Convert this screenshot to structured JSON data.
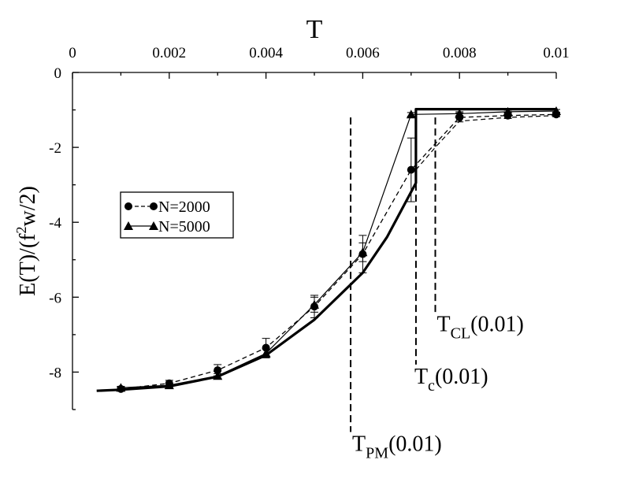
{
  "chart_data": {
    "type": "line",
    "xlabel": "T",
    "ylabel": "E(T)/(f",
    "ylabel_sup": "2",
    "ylabel_tail": "w/2)",
    "xlim": [
      0,
      0.01
    ],
    "ylim": [
      -9,
      0
    ],
    "x_ticks": [
      0,
      0.002,
      0.004,
      0.006,
      0.008,
      0.01
    ],
    "x_tick_labels": [
      "0",
      "0.002",
      "0.004",
      "0.006",
      "0.008",
      "0.01"
    ],
    "y_ticks": [
      0,
      -2,
      -4,
      -6,
      -8
    ],
    "y_tick_labels": [
      "0",
      "-2",
      "-4",
      "-6",
      "-8"
    ],
    "x_axis_position": "top",
    "legend_position": "center-left",
    "series": [
      {
        "name": "N=2000",
        "marker": "circle",
        "line_style": "dashed",
        "x": [
          0.001,
          0.002,
          0.003,
          0.004,
          0.005,
          0.006,
          0.007,
          0.008,
          0.009,
          0.01
        ],
        "y": [
          -8.45,
          -8.3,
          -7.95,
          -7.35,
          -6.25,
          -4.85,
          -2.6,
          -1.2,
          -1.15,
          -1.12
        ],
        "error": [
          0.05,
          0.08,
          0.15,
          0.25,
          0.3,
          0.5,
          0.85,
          0.12,
          0.08,
          0.06
        ]
      },
      {
        "name": "N=5000",
        "marker": "triangle",
        "line_style": "thin-solid",
        "x": [
          0.001,
          0.002,
          0.003,
          0.004,
          0.005,
          0.006,
          0.007,
          0.008,
          0.009,
          0.01
        ],
        "y": [
          -8.42,
          -8.35,
          -8.1,
          -7.5,
          -6.2,
          -4.8,
          -1.12,
          -1.1,
          -1.05,
          -1.03
        ],
        "error": [
          0.04,
          0.05,
          0.06,
          0.12,
          0.2,
          0.25,
          0.05,
          0.05,
          0.04,
          0.04
        ]
      },
      {
        "marker": "none",
        "line_style": "thick-solid",
        "x": [
          0.0005,
          0.001,
          0.002,
          0.003,
          0.004,
          0.005,
          0.006,
          0.0065,
          0.0071,
          0.0071,
          0.01
        ],
        "y": [
          -8.5,
          -8.47,
          -8.38,
          -8.12,
          -7.55,
          -6.6,
          -5.35,
          -4.4,
          -2.95,
          -0.98,
          -0.98
        ]
      },
      {
        "marker": "none",
        "line_style": "thin-dashed",
        "x": [
          0.0071,
          0.0075,
          0.008,
          0.009,
          0.01
        ],
        "y": [
          -2.6,
          -2.0,
          -1.3,
          -1.2,
          -1.15
        ]
      }
    ],
    "vlines": [
      {
        "x": 0.00575,
        "y_top": -1.2,
        "y_bottom": -9.6,
        "label_main": "T",
        "label_sub": "PM",
        "label_tail": "(0.01)"
      },
      {
        "x": 0.0071,
        "y_top": -1.2,
        "y_bottom": -7.8,
        "label_main": "T",
        "label_sub": "c",
        "label_tail": "(0.01)"
      },
      {
        "x": 0.0075,
        "y_top": -1.2,
        "y_bottom": -6.4,
        "label_main": "T",
        "label_sub": "CL",
        "label_tail": "(0.01)"
      }
    ]
  }
}
